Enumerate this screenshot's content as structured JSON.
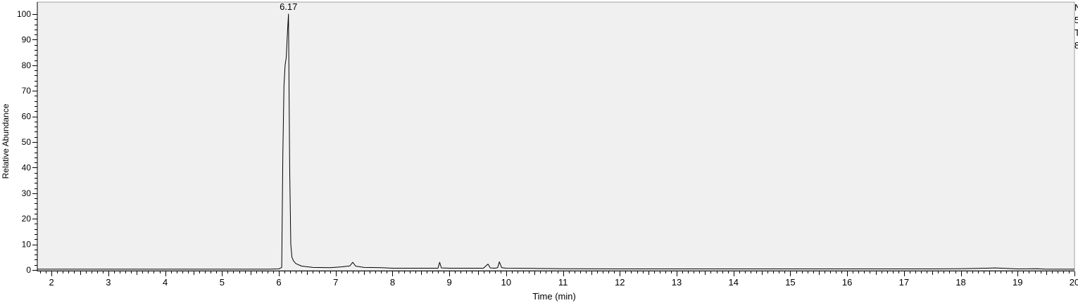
{
  "chart_data": {
    "type": "line",
    "title": "",
    "xlabel": "Time (min)",
    "ylabel": "Relative Abundance",
    "xlim": [
      1.75,
      20
    ],
    "ylim": [
      0,
      100
    ],
    "x_ticks": [
      2,
      3,
      4,
      5,
      6,
      7,
      8,
      9,
      10,
      11,
      12,
      13,
      14,
      15,
      16,
      17,
      18,
      19,
      20
    ],
    "y_ticks": [
      0,
      10,
      20,
      30,
      40,
      50,
      60,
      70,
      80,
      90,
      100
    ],
    "grid": false,
    "background": "#f0f0f0",
    "line_color": "#000000",
    "annotations": [
      {
        "x": 6.17,
        "y": 100,
        "label": "6.17"
      }
    ],
    "clipped_side_text": [
      "N",
      "5",
      "T",
      "8"
    ],
    "series": [
      {
        "x": [
          1.75,
          2.0,
          3.0,
          4.0,
          5.0,
          5.8,
          6.0,
          6.05,
          6.07,
          6.09,
          6.11,
          6.13,
          6.15,
          6.17,
          6.19,
          6.21,
          6.23,
          6.26,
          6.3,
          6.4,
          6.6,
          6.9,
          7.1,
          7.25,
          7.3,
          7.35,
          7.5,
          7.8,
          8.0,
          8.5,
          8.8,
          8.83,
          8.86,
          9.0,
          9.6,
          9.68,
          9.72,
          9.8,
          9.85,
          9.88,
          9.92,
          10.0,
          10.5,
          11,
          12,
          13,
          14,
          15,
          16,
          17,
          17.5,
          18.0,
          18.3,
          18.6,
          18.8,
          19.0,
          19.35,
          19.5,
          20.0
        ],
        "y": [
          0.3,
          0.3,
          0.3,
          0.3,
          0.3,
          0.3,
          0.4,
          1.0,
          45,
          72,
          80,
          83,
          92,
          100,
          40,
          10,
          5,
          3.5,
          2.5,
          1.5,
          1.0,
          0.9,
          1.2,
          1.6,
          3.0,
          1.5,
          1.0,
          0.9,
          0.7,
          0.7,
          0.7,
          3.0,
          0.8,
          0.7,
          0.7,
          2.3,
          0.8,
          0.7,
          0.9,
          3.2,
          0.9,
          0.7,
          0.6,
          0.5,
          0.4,
          0.4,
          0.4,
          0.4,
          0.4,
          0.4,
          0.4,
          0.5,
          0.6,
          0.8,
          0.6,
          0.4,
          0.5,
          0.3,
          0.3
        ]
      }
    ]
  }
}
